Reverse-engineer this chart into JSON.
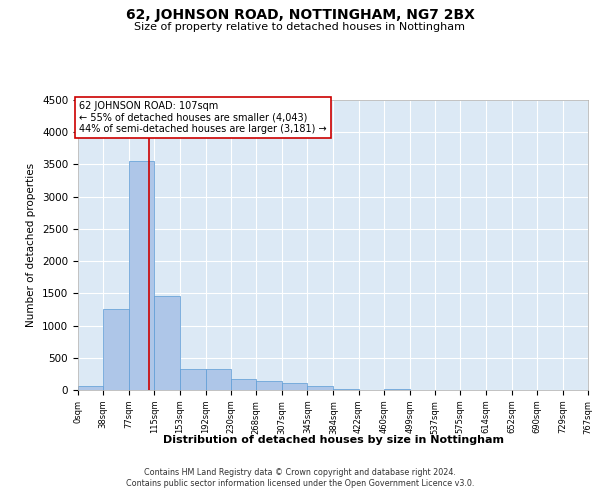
{
  "title": "62, JOHNSON ROAD, NOTTINGHAM, NG7 2BX",
  "subtitle": "Size of property relative to detached houses in Nottingham",
  "xlabel": "Distribution of detached houses by size in Nottingham",
  "ylabel": "Number of detached properties",
  "bin_edges": [
    0,
    38,
    77,
    115,
    153,
    192,
    230,
    268,
    307,
    345,
    384,
    422,
    460,
    499,
    537,
    575,
    614,
    652,
    690,
    729,
    767
  ],
  "bar_heights": [
    60,
    1250,
    3550,
    1460,
    320,
    320,
    175,
    140,
    110,
    60,
    20,
    0,
    10,
    0,
    0,
    0,
    0,
    0,
    0,
    0
  ],
  "bar_color": "#aec6e8",
  "bar_edge_color": "#5b9bd5",
  "property_size": 107,
  "red_line_color": "#cc0000",
  "annotation_text": "62 JOHNSON ROAD: 107sqm\n← 55% of detached houses are smaller (4,043)\n44% of semi-detached houses are larger (3,181) →",
  "annotation_box_color": "#ffffff",
  "annotation_box_edge": "#cc0000",
  "ylim": [
    0,
    4500
  ],
  "yticks": [
    0,
    500,
    1000,
    1500,
    2000,
    2500,
    3000,
    3500,
    4000,
    4500
  ],
  "background_color": "#dce9f5",
  "footer_line1": "Contains HM Land Registry data © Crown copyright and database right 2024.",
  "footer_line2": "Contains public sector information licensed under the Open Government Licence v3.0.",
  "grid_color": "#ffffff",
  "tick_labels": [
    "0sqm",
    "38sqm",
    "77sqm",
    "115sqm",
    "153sqm",
    "192sqm",
    "230sqm",
    "268sqm",
    "307sqm",
    "345sqm",
    "384sqm",
    "422sqm",
    "460sqm",
    "499sqm",
    "537sqm",
    "575sqm",
    "614sqm",
    "652sqm",
    "690sqm",
    "729sqm",
    "767sqm"
  ]
}
